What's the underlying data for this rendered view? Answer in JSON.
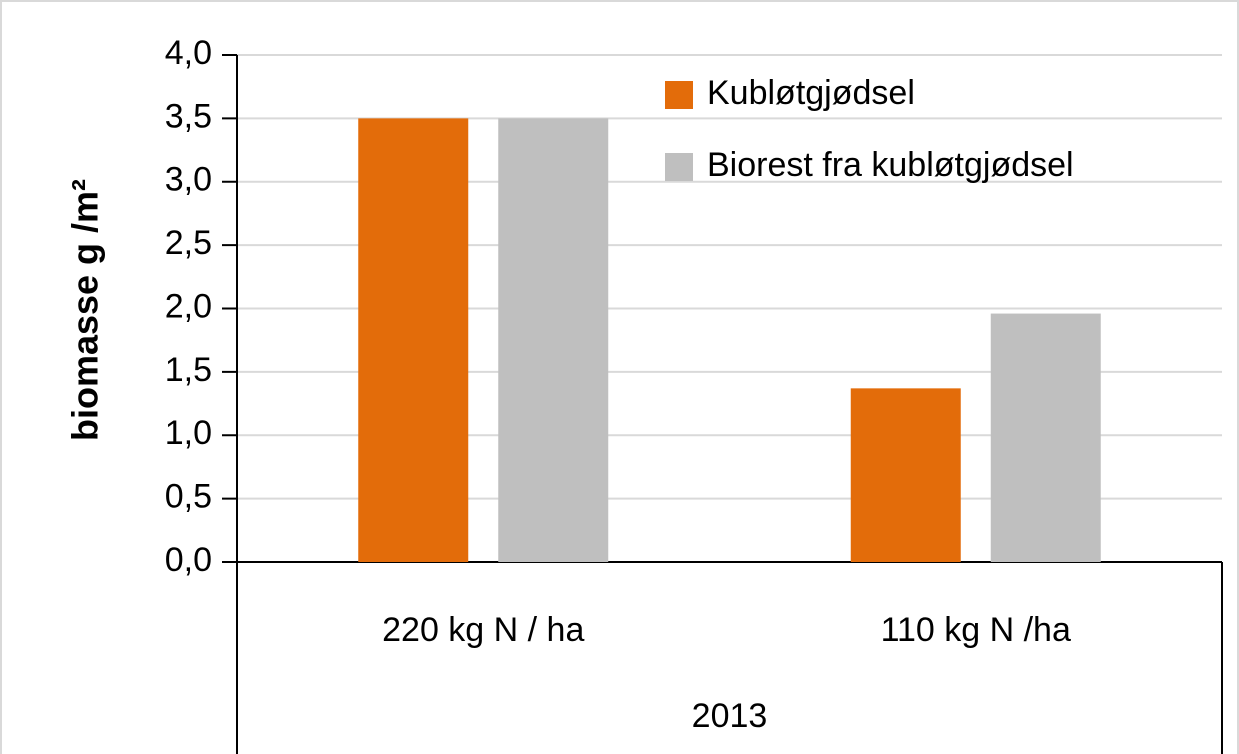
{
  "chart_data": {
    "type": "bar",
    "categories": [
      "220 kg N / ha",
      "110 kg N /ha"
    ],
    "group_label": "2013",
    "y_label": "biomasse g /m²",
    "series": [
      {
        "name": "Kubløtgjødsel",
        "color": "#e36c0a",
        "values": [
          3.5,
          1.37
        ]
      },
      {
        "name": "Biorest fra kubløtgjødsel",
        "color": "#bfbfbf",
        "values": [
          3.5,
          1.96
        ]
      }
    ],
    "ylim": [
      0,
      4
    ],
    "yticks": [
      {
        "value": 0,
        "label": "0,0"
      },
      {
        "value": 0.5,
        "label": "0,5"
      },
      {
        "value": 1,
        "label": "1,0"
      },
      {
        "value": 1.5,
        "label": "1,5"
      },
      {
        "value": 2,
        "label": "2,0"
      },
      {
        "value": 2.5,
        "label": "2,5"
      },
      {
        "value": 3,
        "label": "3,0"
      },
      {
        "value": 3.5,
        "label": "3,5"
      },
      {
        "value": 4,
        "label": "4,0"
      }
    ],
    "grid": true,
    "legend": "top-right"
  }
}
